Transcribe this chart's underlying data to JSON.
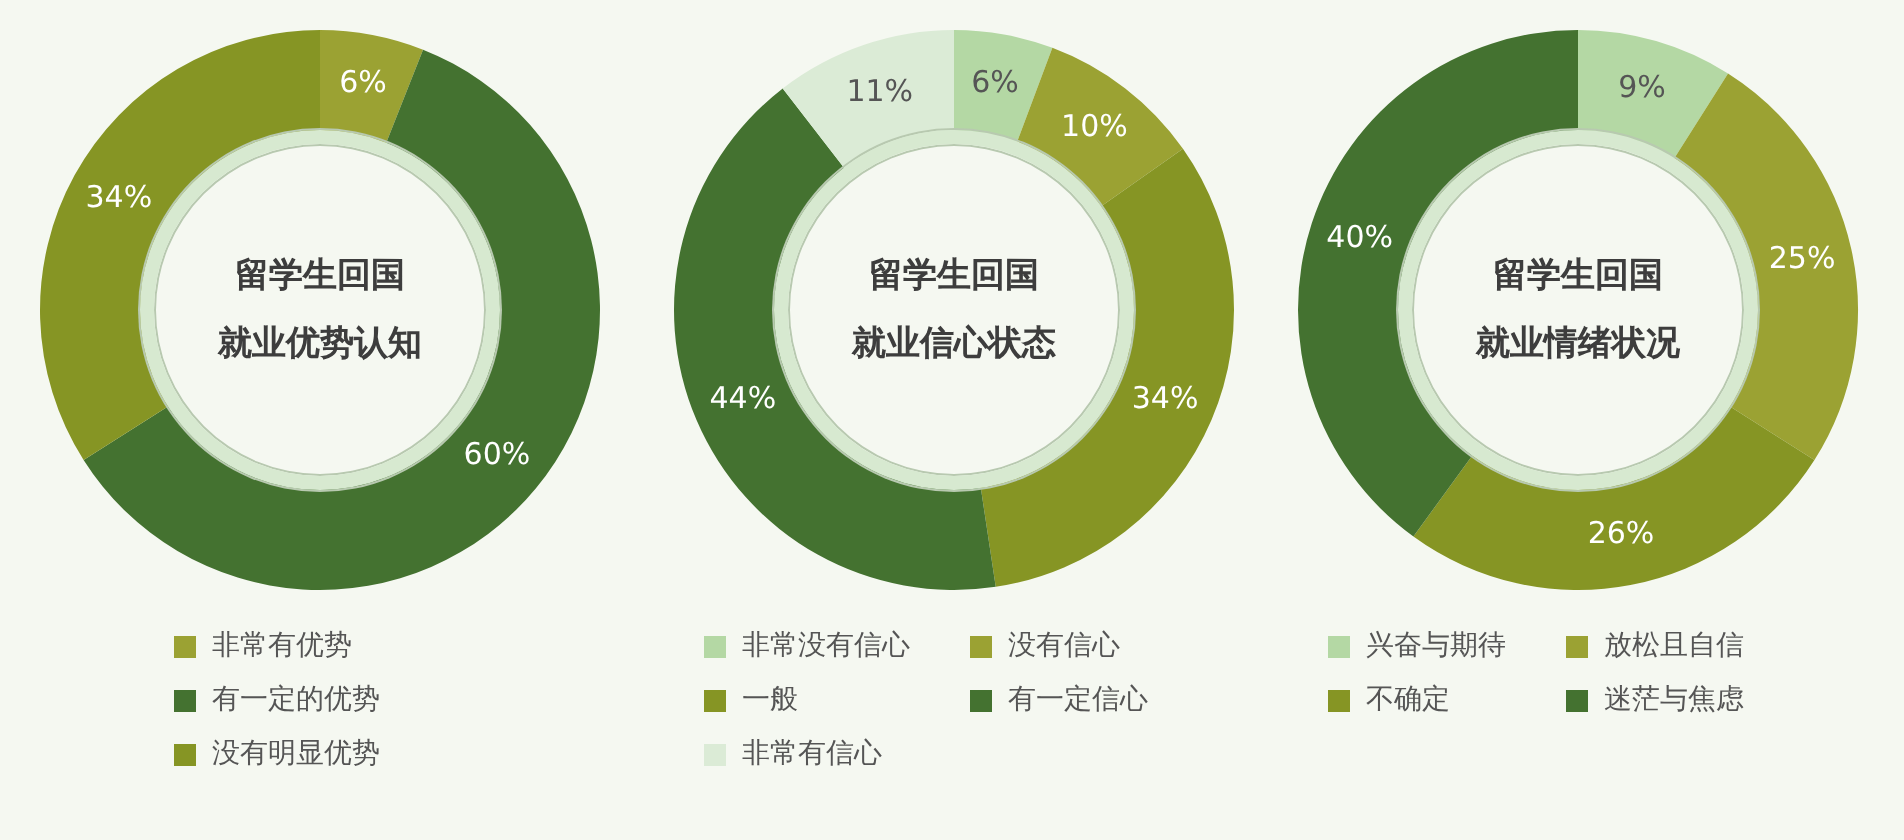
{
  "chart_data": [
    {
      "type": "donut",
      "title": "留学生回国就业优势认知",
      "categories": [
        "非常有优势",
        "有一定的优势",
        "没有明显优势"
      ],
      "values": [
        6,
        60,
        34
      ],
      "colors": [
        "#9ba233",
        "#447230",
        "#869524"
      ],
      "value_labels": [
        "6%",
        "60%",
        "34%"
      ],
      "legend": "bottom"
    },
    {
      "type": "donut",
      "title": "留学生回国就业信心状态",
      "categories": [
        "非常没有信心",
        "没有信心",
        "一般",
        "有一定信心",
        "非常有信心"
      ],
      "values": [
        6,
        10,
        34,
        44,
        11
      ],
      "colors": [
        "#b4d8a4",
        "#9ba233",
        "#869524",
        "#447230",
        "#dbebd6"
      ],
      "value_labels": [
        "6%",
        "10%",
        "34%",
        "44%",
        "11%"
      ],
      "legend": "bottom"
    },
    {
      "type": "donut",
      "title": "留学生回国就业情绪状况",
      "categories": [
        "兴奋与期待",
        "放松且自信",
        "不确定",
        "迷茫与焦虑"
      ],
      "values": [
        9,
        25,
        26,
        40
      ],
      "colors": [
        "#b4d8a4",
        "#9ba233",
        "#869524",
        "#447230"
      ],
      "value_labels": [
        "9%",
        "25%",
        "26%",
        "40%"
      ],
      "legend": "bottom"
    }
  ]
}
